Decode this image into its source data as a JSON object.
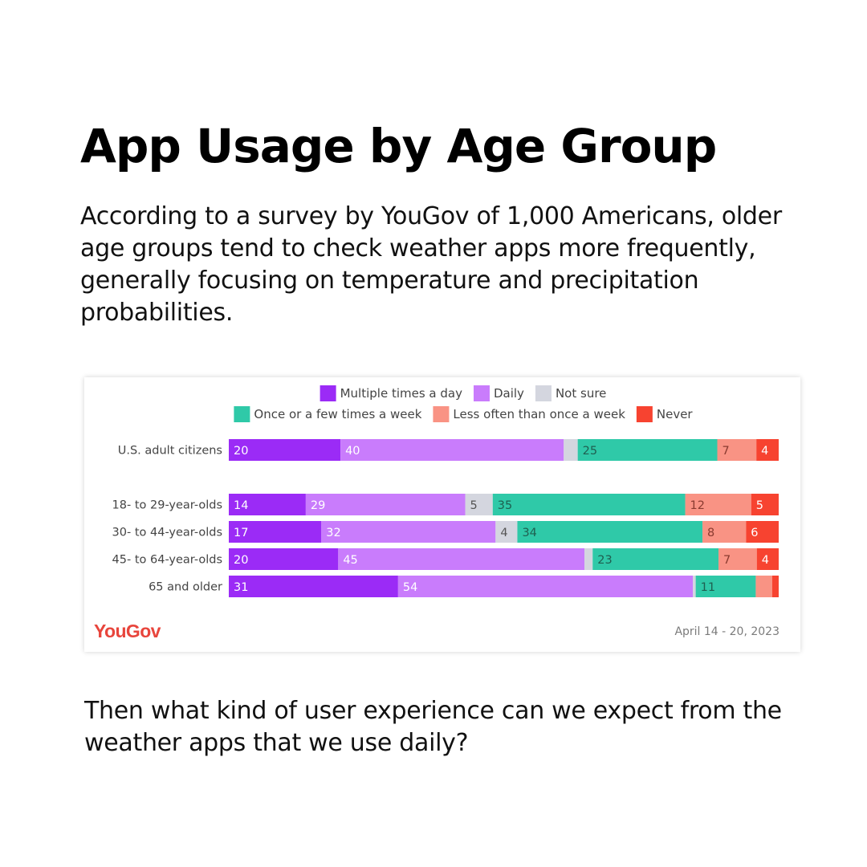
{
  "title": "App Usage by Age Group",
  "intro": "According to a survey by YouGov of 1,000 Americans, older age groups tend to check weather apps more frequently, generally focusing on temperature and precipitation probabilities.",
  "outro": "Then what kind of user experience can we expect from the weather apps that we use daily?",
  "source": {
    "logo": "YouGov",
    "date": "April 14 - 20, 2023"
  },
  "chart_data": {
    "type": "bar",
    "orientation": "horizontal",
    "stacked": true,
    "normalized_percent": true,
    "legend_position": "top",
    "grid": false,
    "categories": [
      "U.S. adult citizens",
      "18- to 29-year-olds",
      "30- to 44-year-olds",
      "45- to 64-year-olds",
      "65 and older"
    ],
    "series": [
      {
        "name": "Multiple times a day",
        "color": "#9b2bf6",
        "values": [
          20,
          14,
          17,
          20,
          31
        ]
      },
      {
        "name": "Daily",
        "color": "#c97cfc",
        "values": [
          40,
          29,
          32,
          45,
          54
        ]
      },
      {
        "name": "Not sure",
        "color": "#d4d6df",
        "values": [
          2.5,
          5,
          4,
          1.5,
          0.5
        ]
      },
      {
        "name": "Once or a few times a week",
        "color": "#2fc9a8",
        "values": [
          25,
          35,
          34,
          23,
          11
        ]
      },
      {
        "name": "Less often than once a week",
        "color": "#f99384",
        "values": [
          7,
          12,
          8,
          7,
          3
        ]
      },
      {
        "name": "Never",
        "color": "#f74330",
        "values": [
          4,
          5,
          6,
          4,
          1.2
        ]
      }
    ],
    "data_labels": [
      [
        "20",
        "40",
        "",
        "25",
        "7",
        "4"
      ],
      [
        "14",
        "29",
        "5",
        "35",
        "12",
        "5"
      ],
      [
        "17",
        "32",
        "4",
        "34",
        "8",
        "6"
      ],
      [
        "20",
        "45",
        "",
        "23",
        "7",
        "4"
      ],
      [
        "31",
        "54",
        "",
        "11",
        "",
        ""
      ]
    ]
  }
}
